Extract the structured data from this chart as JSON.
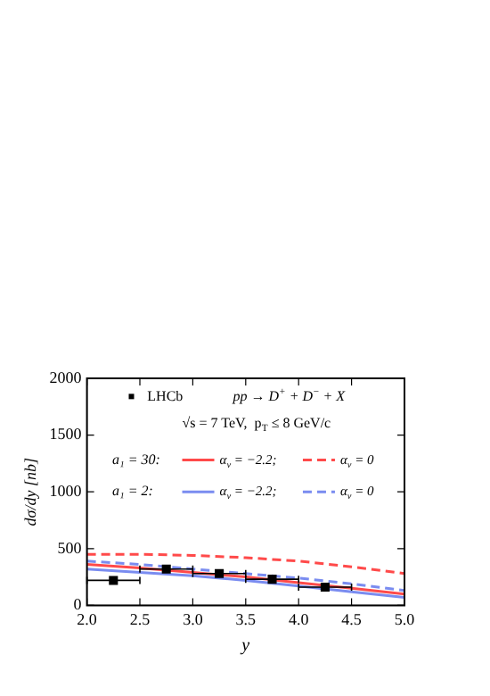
{
  "chart_data": {
    "type": "line",
    "xlabel": "y",
    "ylabel": "dσ/dy [nb]",
    "xlim": [
      2.0,
      5.0
    ],
    "xticks": [
      {
        "value": 2,
        "label": "2.0"
      },
      {
        "value": 2.5,
        "label": "2.5"
      },
      {
        "value": 3,
        "label": "3.0"
      },
      {
        "value": 3.5,
        "label": "3.5"
      },
      {
        "value": 4,
        "label": "4.0"
      },
      {
        "value": 4.5,
        "label": "4.5"
      },
      {
        "value": 5,
        "label": "5.0"
      }
    ],
    "ylim": [
      0,
      2000
    ],
    "yticks": [
      0,
      500,
      1000,
      1500,
      2000
    ],
    "grid": false,
    "legend": "top",
    "annotations": [
      "pp → D$^{+}$ + D$^{−}$ + X",
      "√s = 7 TeV,  p$_{T}$ ≤ 8 GeV/c",
      "a₁ = 30:",
      "a₁ = 2:"
    ],
    "series": [
      {
        "name": "LHCb",
        "type": "scatter",
        "marker": "square",
        "color": "#000000",
        "x": [
          2.25,
          2.75,
          3.25,
          3.75,
          4.25
        ],
        "values": [
          220,
          320,
          280,
          230,
          160
        ],
        "xerrors": [
          0.25,
          0.25,
          0.25,
          0.25,
          0.25
        ]
      },
      {
        "name": "α$_{ν}$ = −2.2;",
        "color": "#ff4a4a",
        "line_style": "solid",
        "x": [
          2.0,
          2.5,
          3.0,
          3.5,
          4.0,
          4.5,
          5.0
        ],
        "values": [
          360,
          330,
          290,
          250,
          200,
          150,
          100
        ]
      },
      {
        "name": "α$_{ν}$ = 0",
        "color": "#ff4a4a",
        "line_style": "dashed",
        "x": [
          2.0,
          2.5,
          3.0,
          3.5,
          4.0,
          4.5,
          5.0
        ],
        "values": [
          450,
          450,
          440,
          420,
          390,
          340,
          280
        ]
      },
      {
        "name": "α$_{ν}$ = −2.2;",
        "color": "#7a8cf0",
        "line_style": "solid",
        "x": [
          2.0,
          2.5,
          3.0,
          3.5,
          4.0,
          4.5,
          5.0
        ],
        "values": [
          320,
          290,
          260,
          220,
          170,
          120,
          70
        ]
      },
      {
        "name": "α$_{ν}$ = 0",
        "color": "#7a8cf0",
        "line_style": "dashed",
        "x": [
          2.0,
          2.5,
          3.0,
          3.5,
          4.0,
          4.5,
          5.0
        ],
        "values": [
          390,
          360,
          320,
          280,
          240,
          190,
          130
        ]
      }
    ]
  }
}
